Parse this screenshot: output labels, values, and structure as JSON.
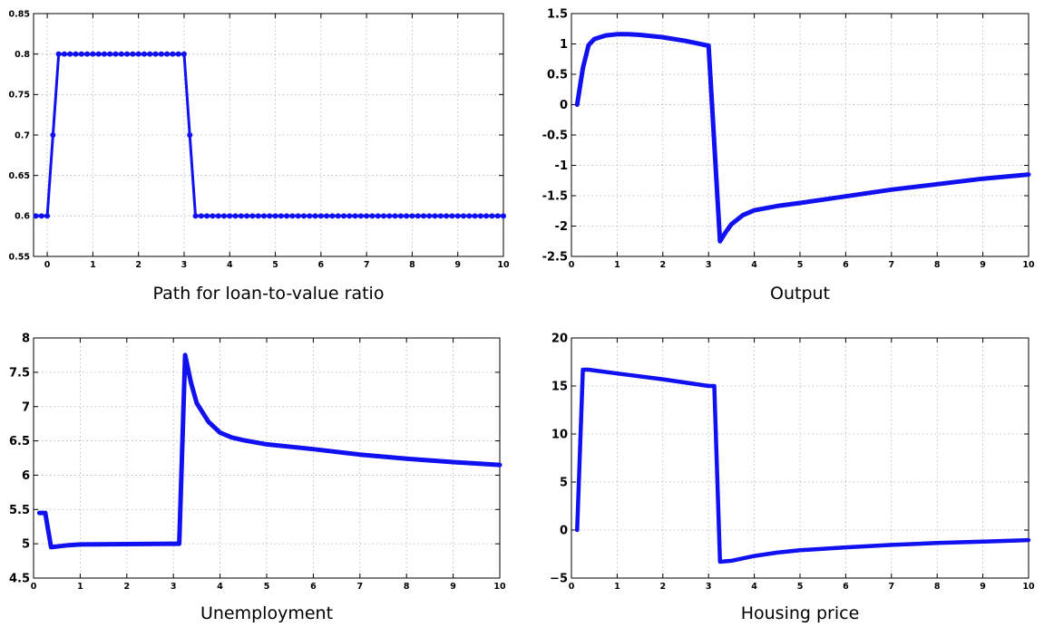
{
  "series_color": "#1010f0",
  "chart_data": [
    {
      "type": "line",
      "title": "Path for loan-to-value ratio",
      "markers": true,
      "xlim": [
        -0.3,
        10
      ],
      "ylim": [
        0.55,
        0.85
      ],
      "xticks": [
        0,
        1,
        2,
        3,
        4,
        5,
        6,
        7,
        8,
        9,
        10
      ],
      "yticks": [
        0.55,
        0.6,
        0.65,
        0.7,
        0.75,
        0.8,
        0.85
      ],
      "ytick_labels": [
        "0.55",
        "0.6",
        "0.65",
        "0.7",
        "0.75",
        "0.8",
        "0.85"
      ],
      "grid": true,
      "series": [
        {
          "x": [
            -0.25,
            -0.125,
            0,
            0.125,
            0.25,
            3,
            3.125,
            3.25,
            10
          ],
          "y": [
            0.6,
            0.6,
            0.6,
            0.7,
            0.8,
            0.8,
            0.7,
            0.6,
            0.6
          ]
        }
      ]
    },
    {
      "type": "line",
      "title": "Output",
      "xlim": [
        0,
        10
      ],
      "ylim": [
        -2.5,
        1.5
      ],
      "xticks": [
        0,
        1,
        2,
        3,
        4,
        5,
        6,
        7,
        8,
        9,
        10
      ],
      "yticks": [
        -2.5,
        -2,
        -1.5,
        -1,
        -0.5,
        0,
        0.5,
        1,
        1.5
      ],
      "ytick_labels": [
        "-2.5",
        "-2",
        "-1.5",
        "-1",
        "-0.5",
        "0",
        "0.5",
        "1",
        "1.5"
      ],
      "grid": true,
      "series": [
        {
          "x": [
            0.125,
            0.25,
            0.375,
            0.5,
            0.75,
            1,
            1.25,
            1.5,
            2,
            2.5,
            3,
            3.25,
            3.375,
            3.5,
            3.75,
            4,
            4.5,
            5,
            6,
            7,
            8,
            9,
            10
          ],
          "y": [
            0,
            0.6,
            0.98,
            1.08,
            1.14,
            1.16,
            1.16,
            1.15,
            1.11,
            1.05,
            0.97,
            -2.25,
            -2.1,
            -1.97,
            -1.82,
            -1.74,
            -1.67,
            -1.62,
            -1.51,
            -1.4,
            -1.31,
            -1.22,
            -1.15
          ]
        }
      ]
    },
    {
      "type": "line",
      "title": "Unemployment",
      "xlim": [
        0,
        10
      ],
      "ylim": [
        4.5,
        8
      ],
      "xticks": [
        0,
        1,
        2,
        3,
        4,
        5,
        6,
        7,
        8,
        9,
        10
      ],
      "yticks": [
        4.5,
        5,
        5.5,
        6,
        6.5,
        7,
        7.5,
        8
      ],
      "ytick_labels": [
        "4.5",
        "5",
        "5.5",
        "6",
        "6.5",
        "7",
        "7.5",
        "8"
      ],
      "grid": true,
      "series": [
        {
          "x": [
            0.125,
            0.25,
            0.375,
            0.5,
            0.75,
            1,
            2,
            3,
            3.125,
            3.25,
            3.375,
            3.5,
            3.75,
            4,
            4.25,
            4.5,
            5,
            6,
            7,
            8,
            9,
            10
          ],
          "y": [
            5.45,
            5.45,
            4.95,
            4.96,
            4.98,
            4.99,
            4.995,
            5.0,
            5.0,
            7.75,
            7.35,
            7.05,
            6.78,
            6.62,
            6.55,
            6.51,
            6.45,
            6.38,
            6.3,
            6.24,
            6.19,
            6.15
          ]
        }
      ]
    },
    {
      "type": "line",
      "title": "Housing price",
      "xlim": [
        0,
        10
      ],
      "ylim": [
        -5,
        20
      ],
      "xticks": [
        0,
        1,
        2,
        3,
        4,
        5,
        6,
        7,
        8,
        9,
        10
      ],
      "yticks": [
        -5,
        0,
        5,
        10,
        15,
        20
      ],
      "ytick_labels": [
        "−5",
        "0",
        "5",
        "10",
        "15",
        "20"
      ],
      "grid": true,
      "series": [
        {
          "x": [
            0.125,
            0.25,
            0.375,
            1,
            2,
            3,
            3.125,
            3.25,
            3.5,
            4,
            4.5,
            5,
            6,
            7,
            8,
            9,
            10
          ],
          "y": [
            0,
            16.7,
            16.7,
            16.3,
            15.7,
            15.0,
            15.0,
            -3.3,
            -3.2,
            -2.7,
            -2.35,
            -2.1,
            -1.8,
            -1.55,
            -1.35,
            -1.2,
            -1.05
          ]
        }
      ]
    }
  ]
}
